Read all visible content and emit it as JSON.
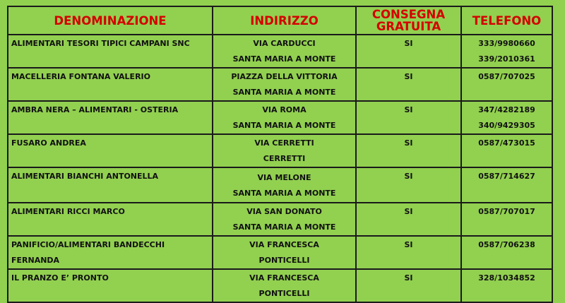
{
  "colors": {
    "background": "#92d050",
    "header_text": "#d40000",
    "border": "#1a1a1a"
  },
  "headers": [
    "DENOMINAZIONE",
    "INDIRIZZO",
    "CONSEGNA GRATUITA",
    "TELEFONO"
  ],
  "rows": [
    {
      "name": [
        "ALIMENTARI TESORI TIPICI CAMPANI SNC"
      ],
      "address": [
        "VIA CARDUCCI",
        "SANTA MARIA A MONTE"
      ],
      "delivery": "SI",
      "phone": [
        "333/9980660",
        "339/2010361"
      ]
    },
    {
      "name": [
        "MACELLERIA FONTANA VALERIO"
      ],
      "address": [
        "PIAZZA DELLA VITTORIA",
        "SANTA MARIA A MONTE"
      ],
      "delivery": "SI",
      "phone": [
        "0587/707025"
      ]
    },
    {
      "name": [
        "AMBRA NERA – ALIMENTARI - OSTERIA"
      ],
      "address": [
        "VIA ROMA",
        "SANTA MARIA A MONTE"
      ],
      "delivery": "SI",
      "phone": [
        "347/4282189",
        "340/9429305"
      ]
    },
    {
      "name": [
        "FUSARO ANDREA"
      ],
      "address": [
        "VIA CERRETTI",
        "CERRETTI"
      ],
      "delivery": "SI",
      "phone": [
        "0587/473015"
      ]
    },
    {
      "name": [
        "ALIMENTARI BIANCHI ANTONELLA"
      ],
      "address": [
        "VIA MELONE",
        "SANTA MARIA A MONTE"
      ],
      "delivery": "SI",
      "phone": [
        "0587/714627"
      ]
    },
    {
      "name": [
        "ALIMENTARI RICCI MARCO"
      ],
      "address": [
        "VIA SAN DONATO",
        "SANTA MARIA A MONTE"
      ],
      "delivery": "SI",
      "phone": [
        "0587/707017"
      ]
    },
    {
      "name": [
        "PANIFICIO/ALIMENTARI BANDECCHI",
        "FERNANDA"
      ],
      "address": [
        "VIA FRANCESCA",
        "PONTICELLI"
      ],
      "delivery": "SI",
      "phone": [
        "0587/706238"
      ]
    },
    {
      "name": [
        "IL PRANZO E’ PRONTO"
      ],
      "address": [
        "VIA FRANCESCA",
        "PONTICELLI"
      ],
      "delivery": "SI",
      "phone": [
        "328/1034852"
      ]
    }
  ]
}
